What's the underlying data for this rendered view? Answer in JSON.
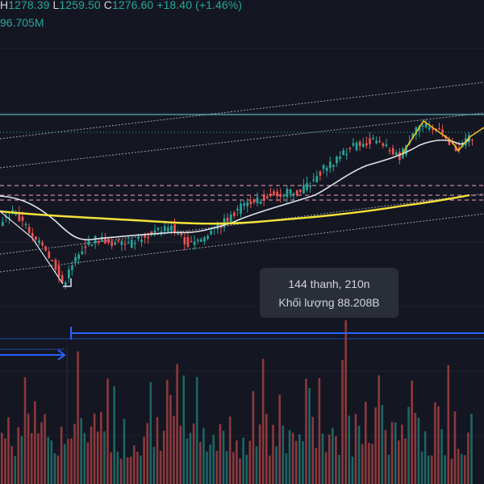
{
  "ohlc": {
    "high_label": "H",
    "high": "1278.39",
    "low_label": "L",
    "low": "1259.50",
    "close_label": "C",
    "close": "1276.60",
    "change": "+18.40 (+1.46%)"
  },
  "volume_readout": "96.705M",
  "measure_tooltip": {
    "line1": "144 thanh, 210n",
    "line2": "Khối lượng 88.208B"
  },
  "colors": {
    "background": "#141722",
    "up": "#26a69a",
    "down": "#ef5350",
    "ma_fast": "#e0e3eb",
    "ma_slow": "#f5e33b",
    "zigzag": "#f5c518",
    "channel": "#9aa0ab",
    "level_pink": "#f7a1b8",
    "level_cyan": "#6ed3e6",
    "range_blue": "#2962ff"
  }
}
